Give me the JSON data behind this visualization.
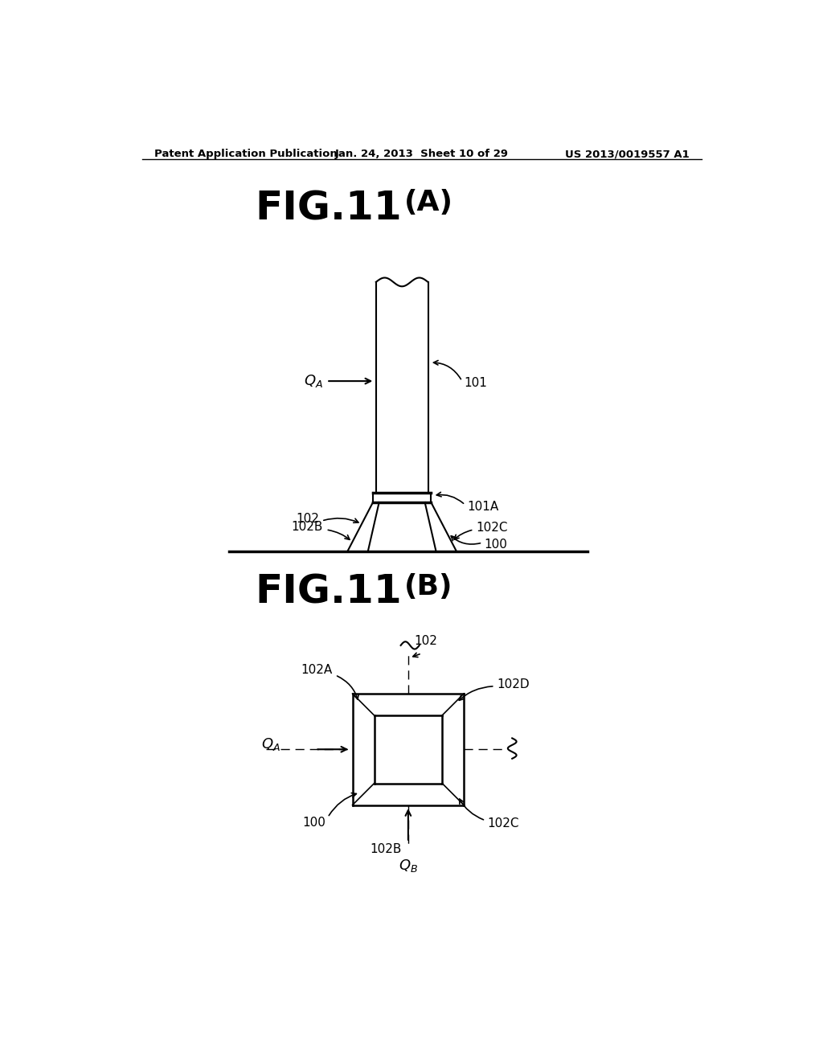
{
  "bg_color": "#ffffff",
  "header_left": "Patent Application Publication",
  "header_center": "Jan. 24, 2013  Sheet 10 of 29",
  "header_right": "US 2013/0019557 A1",
  "fig_a_title": "FIG.11(A)",
  "fig_b_title": "FIG.11(B)"
}
